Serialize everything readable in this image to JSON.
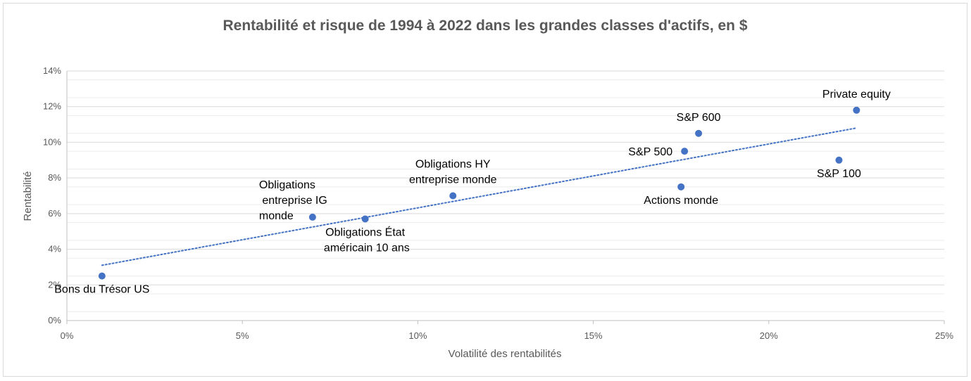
{
  "chart_data": {
    "type": "scatter",
    "title": "Rentabilité et risque de 1994 à 2022 dans les grandes classes d'actifs,  en $",
    "xlabel": "Volatilité des rentabilités",
    "ylabel": "Rentabilité",
    "xlim": [
      0,
      25
    ],
    "ylim": [
      0,
      14
    ],
    "x_ticks": [
      "0%",
      "5%",
      "10%",
      "15%",
      "20%",
      "25%"
    ],
    "y_ticks": [
      "0%",
      "2%",
      "4%",
      "6%",
      "8%",
      "10%",
      "12%",
      "14%"
    ],
    "grid": true,
    "trendline": {
      "style": "dotted",
      "x": [
        1,
        22.5
      ],
      "y": [
        3.1,
        10.8
      ]
    },
    "colors": {
      "marker": "#4472C4",
      "trendline": "#4472C4",
      "grid": "#d9d9d9"
    },
    "points": [
      {
        "label_lines": [
          "Bons du Trésor US"
        ],
        "x": 1.0,
        "y": 2.5,
        "label_pos": "below"
      },
      {
        "label_lines": [
          "Obligations",
          " entreprise IG",
          "monde"
        ],
        "x": 7.0,
        "y": 5.8,
        "label_pos": "left-above"
      },
      {
        "label_lines": [
          "Obligations État",
          " américain 10 ans"
        ],
        "x": 8.5,
        "y": 5.7,
        "label_pos": "below"
      },
      {
        "label_lines": [
          "Obligations HY",
          "entreprise monde"
        ],
        "x": 11.0,
        "y": 7.0,
        "label_pos": "above"
      },
      {
        "label_lines": [
          "Actions monde"
        ],
        "x": 17.5,
        "y": 7.5,
        "label_pos": "below"
      },
      {
        "label_lines": [
          "S&P 500"
        ],
        "x": 17.6,
        "y": 9.5,
        "label_pos": "left"
      },
      {
        "label_lines": [
          "S&P 600"
        ],
        "x": 18.0,
        "y": 10.5,
        "label_pos": "above"
      },
      {
        "label_lines": [
          "S&P 100"
        ],
        "x": 22.0,
        "y": 9.0,
        "label_pos": "below"
      },
      {
        "label_lines": [
          "Private equity"
        ],
        "x": 22.5,
        "y": 11.8,
        "label_pos": "above"
      }
    ]
  }
}
